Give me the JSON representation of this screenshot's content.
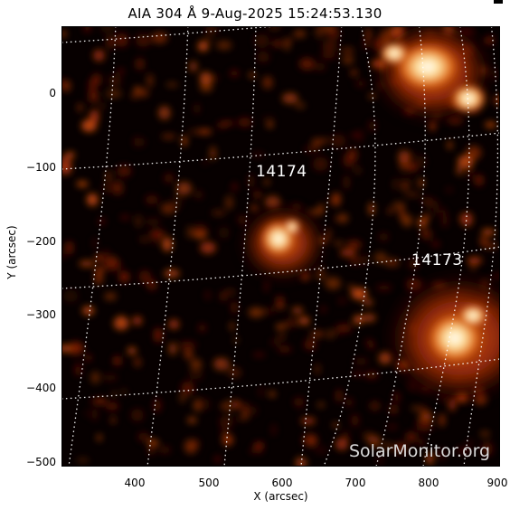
{
  "title": "AIA 304 Å  9-Aug-2025 15:24:53.130",
  "axes": {
    "xlabel": "X (arcsec)",
    "ylabel": "Y (arcsec)",
    "xticks": [
      "400",
      "500",
      "600",
      "700",
      "800",
      "900"
    ],
    "yticks": [
      "0",
      "−100",
      "−200",
      "−300",
      "−400",
      "−500"
    ],
    "xlim": [
      305,
      900
    ],
    "ylim": [
      -510,
      90
    ]
  },
  "regions": [
    {
      "label": "14174"
    },
    {
      "label": "14173"
    }
  ],
  "watermark": "SolarMonitor.org",
  "colors": {
    "background": "#070000",
    "plasma_dim": "#7a1a02",
    "plasma_mid": "#c84a0c",
    "plasma_bright": "#ffcf7a",
    "grid": "#ffffff"
  }
}
